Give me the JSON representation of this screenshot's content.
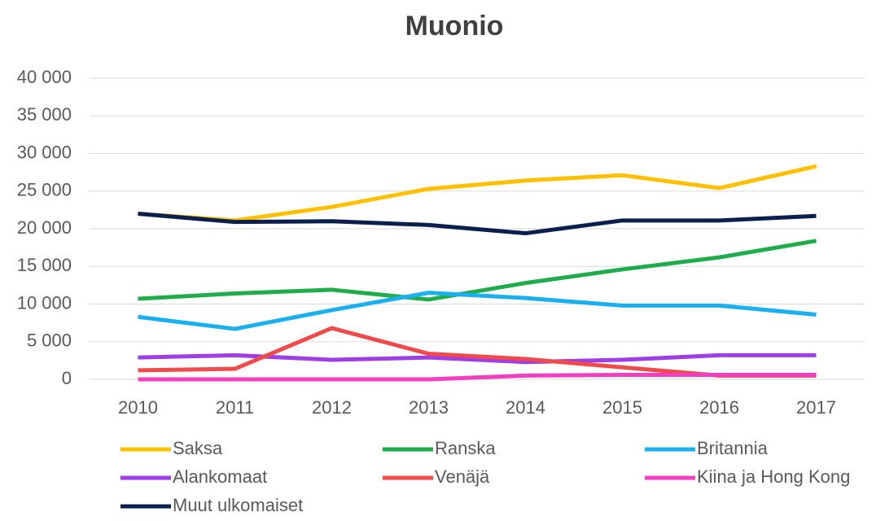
{
  "chart_data": {
    "type": "line",
    "title": "Muonio",
    "x": [
      "2010",
      "2011",
      "2012",
      "2013",
      "2014",
      "2015",
      "2016",
      "2017"
    ],
    "series": [
      {
        "name": "Saksa",
        "color": "#ffc000",
        "values": [
          22000,
          21100,
          22900,
          25300,
          26400,
          27100,
          25400,
          28300
        ]
      },
      {
        "name": "Ranska",
        "color": "#1fad4b",
        "values": [
          10700,
          11400,
          11900,
          10600,
          12800,
          14600,
          16200,
          18400
        ]
      },
      {
        "name": "Britannia",
        "color": "#1ab0ef",
        "values": [
          8300,
          6700,
          9200,
          11500,
          10800,
          9800,
          9800,
          8600
        ]
      },
      {
        "name": "Alankomaat",
        "color": "#9d3ee6",
        "values": [
          2900,
          3200,
          2600,
          2900,
          2300,
          2600,
          3200,
          3200
        ]
      },
      {
        "name": "Venäjä",
        "color": "#f04a4a",
        "values": [
          1200,
          1400,
          6800,
          3400,
          2700,
          1600,
          500,
          500
        ]
      },
      {
        "name": "Kiina ja Hong Kong",
        "color": "#f23fc0",
        "values": [
          0,
          0,
          0,
          0,
          500,
          600,
          600,
          600
        ]
      },
      {
        "name": "Muut ulkomaiset",
        "color": "#0b1f4f",
        "values": [
          22000,
          20900,
          21000,
          20500,
          19400,
          21100,
          21100,
          21700
        ]
      }
    ],
    "ylim": [
      0,
      40000
    ],
    "yticks": [
      0,
      {
        "value": 5000,
        "label": "5 000"
      },
      {
        "value": 10000,
        "label": "10 000"
      },
      {
        "value": 15000,
        "label": "15 000"
      },
      {
        "value": 20000,
        "label": "20 000"
      },
      {
        "value": 25000,
        "label": "25 000"
      },
      {
        "value": 30000,
        "label": "30 000"
      },
      {
        "value": 35000,
        "label": "35 000"
      },
      {
        "value": 40000,
        "label": "40 000"
      }
    ],
    "grid": true
  }
}
